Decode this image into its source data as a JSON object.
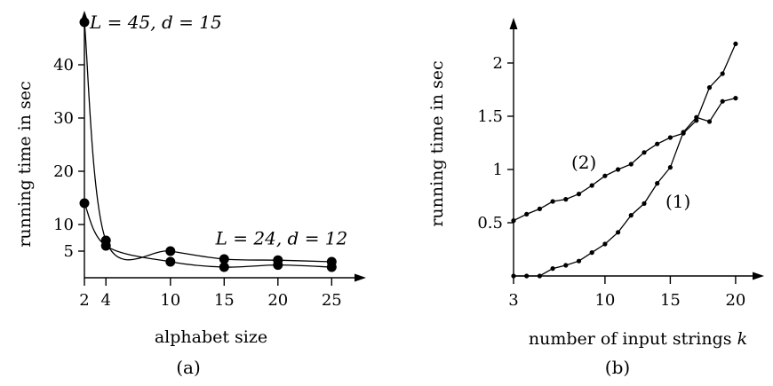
{
  "chart_data": [
    {
      "type": "line",
      "caption": "(a)",
      "xlabel": "alphabet size",
      "ylabel": "running time in sec",
      "xlim": [
        2,
        28.5
      ],
      "ylim": [
        0,
        52
      ],
      "xticks": [
        2,
        4,
        10,
        15,
        20,
        25
      ],
      "yticks": [
        5,
        10,
        20,
        30,
        40
      ],
      "series": [
        {
          "x": [
            2,
            4,
            10,
            15,
            20,
            25
          ],
          "y": [
            48,
            7,
            5,
            3.5,
            3.3,
            3.0
          ]
        },
        {
          "x": [
            2,
            4,
            10,
            15,
            20,
            25
          ],
          "y": [
            14,
            6,
            3,
            2,
            2.4,
            2.0
          ]
        }
      ],
      "annotations": [
        {
          "text": "L = 45, d = 15",
          "x": 2.5,
          "y": 48
        },
        {
          "text": "L = 24, d = 12",
          "x": 14.2,
          "y": 7.4
        }
      ]
    },
    {
      "type": "line",
      "caption": "(b)",
      "xlabel": "number of input strings k",
      "ylabel": "running time in sec",
      "xlim": [
        3,
        22.2
      ],
      "ylim": [
        0,
        2.4
      ],
      "xticks": [
        3,
        10,
        15,
        20
      ],
      "yticks": [
        0.5,
        1,
        1.5,
        2
      ],
      "series": [
        {
          "name": "(1)",
          "x": [
            3,
            4,
            5,
            6,
            7,
            8,
            9,
            10,
            11,
            12,
            13,
            14,
            15,
            16,
            17,
            18,
            19,
            20
          ],
          "y": [
            0.0,
            0.0,
            0.0,
            0.07,
            0.1,
            0.14,
            0.22,
            0.3,
            0.41,
            0.57,
            0.68,
            0.87,
            1.02,
            1.35,
            1.49,
            1.45,
            1.64,
            1.67
          ]
        },
        {
          "name": "(2)",
          "x": [
            3,
            4,
            5,
            6,
            7,
            8,
            9,
            10,
            11,
            12,
            13,
            14,
            15,
            16,
            17,
            18,
            19,
            20
          ],
          "y": [
            0.52,
            0.58,
            0.63,
            0.7,
            0.72,
            0.77,
            0.85,
            0.94,
            1.0,
            1.05,
            1.16,
            1.24,
            1.3,
            1.34,
            1.46,
            1.77,
            1.9,
            2.18
          ]
        }
      ]
    }
  ]
}
